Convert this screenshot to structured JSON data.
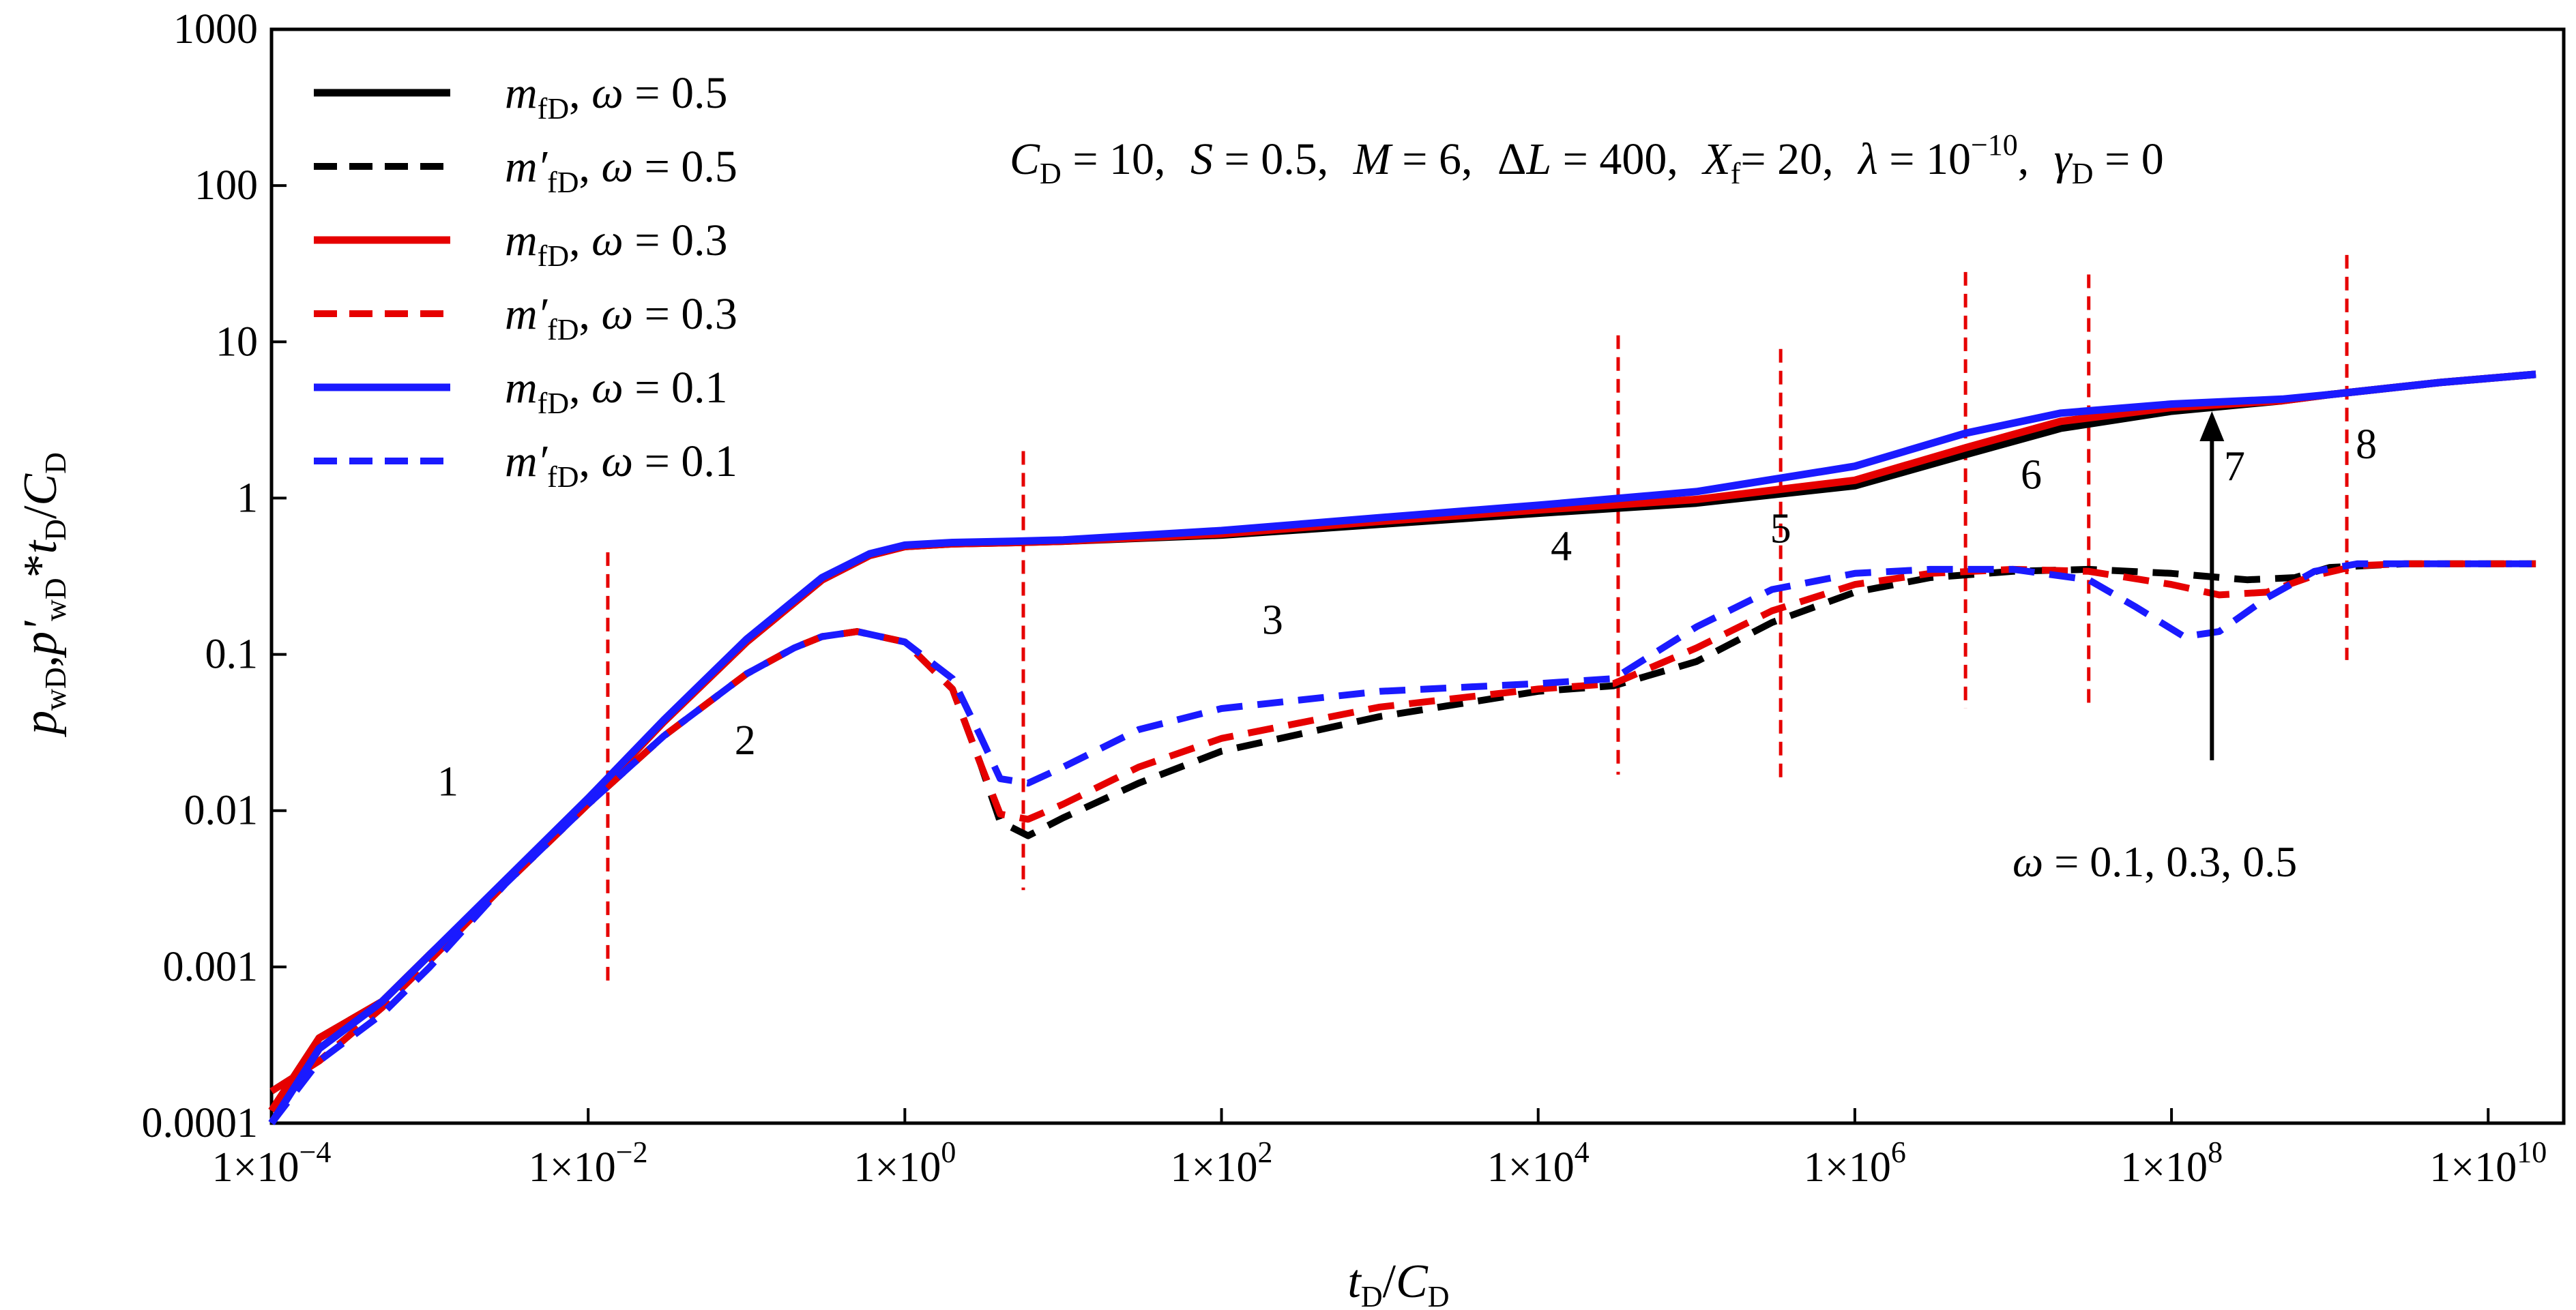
{
  "chart_data": {
    "type": "line",
    "title": "",
    "x_scale": "log",
    "y_scale": "log",
    "xlim": [
      0.0001,
      30000000000
    ],
    "ylim": [
      0.0001,
      1000
    ],
    "x_ticks": [
      {
        "value": 0.0001,
        "mant": "1×10",
        "exp": "−4"
      },
      {
        "value": 0.01,
        "mant": "1×10",
        "exp": "−2"
      },
      {
        "value": 1,
        "mant": "1×10",
        "exp": "0"
      },
      {
        "value": 100,
        "mant": "1×10",
        "exp": "2"
      },
      {
        "value": 10000,
        "mant": "1×10",
        "exp": "4"
      },
      {
        "value": 1000000,
        "mant": "1×10",
        "exp": "6"
      },
      {
        "value": 100000000,
        "mant": "1×10",
        "exp": "8"
      },
      {
        "value": 10000000000,
        "mant": "1×10",
        "exp": "10"
      }
    ],
    "y_ticks": [
      {
        "value": 0.0001,
        "label": "0.0001"
      },
      {
        "value": 0.001,
        "label": "0.001"
      },
      {
        "value": 0.01,
        "label": "0.01"
      },
      {
        "value": 0.1,
        "label": "0.1"
      },
      {
        "value": 1,
        "label": "1"
      },
      {
        "value": 10,
        "label": "10"
      },
      {
        "value": 100,
        "label": "100"
      },
      {
        "value": 1000,
        "label": "1000"
      }
    ],
    "xlabel": {
      "t": "t",
      "sub1": "D",
      "slash": "/",
      "c": "C",
      "sub2": "D"
    },
    "ylabel": {
      "p1": "p",
      "sub1": "wD",
      "comma": ",",
      "p2": "p'",
      "sub2": "wD",
      "star": "*",
      "t": "t",
      "sub3": "D",
      "slash": "/",
      "c": "C",
      "sub4": "D"
    },
    "params_text": {
      "cd": "C",
      "cd_sub": "D",
      "cd_val": " = 10,",
      "s": "S",
      "s_val": " = 0.5,",
      "m": "M",
      "m_val": " = 6,",
      "dl_pre": "Δ",
      "dl": "L",
      "dl_val": " = 400,",
      "xf": "X",
      "xf_sub": "f",
      "xf_val": "= 20,",
      "lam": "λ",
      "lam_val": " = 10",
      "lam_exp": "−10",
      "lam_comma": ",",
      "gam": "γ",
      "gam_sub": "D",
      "gam_val": " = 0"
    },
    "annotation": {
      "omega": "ω",
      "text": " = 0.1,  0.3,  0.5"
    },
    "region_labels": [
      {
        "label": "1",
        "x": 0.0013,
        "y": 0.0125
      },
      {
        "label": "2",
        "x": 0.098,
        "y": 0.023
      },
      {
        "label": "3",
        "x": 210,
        "y": 0.135
      },
      {
        "label": "4",
        "x": 14000,
        "y": 0.4
      },
      {
        "label": "5",
        "x": 340000,
        "y": 0.52
      },
      {
        "label": "6",
        "x": 13000000,
        "y": 1.15
      },
      {
        "label": "7",
        "x": 250000000,
        "y": 1.3
      },
      {
        "label": "8",
        "x": 1700000000,
        "y": 1.8
      }
    ],
    "region_boundaries": [
      {
        "x": 0.0133,
        "y_top": 0.45,
        "y_bottom": 0.00075
      },
      {
        "x": 5.6,
        "y_top": 2.0,
        "y_bottom": 0.0031
      },
      {
        "x": 32000,
        "y_top": 11.0,
        "y_bottom": 0.017
      },
      {
        "x": 340000,
        "y_top": 9.0,
        "y_bottom": 0.0145
      },
      {
        "x": 5000000,
        "y_top": 28.0,
        "y_bottom": 0.045
      },
      {
        "x": 30000000,
        "y_top": 27.0,
        "y_bottom": 0.045
      },
      {
        "x": 1280000000,
        "y_top": 36.0,
        "y_bottom": 0.092
      }
    ],
    "arrow": {
      "x": 180000000,
      "y_from": 0.021,
      "y_to": 3.6
    },
    "series": [
      {
        "name": "m_fD, ω = 0.5",
        "legend_m": "m",
        "legend_sub": "fD",
        "legend_omega": "ω",
        "legend_val": " = 0.5",
        "color": "#000000",
        "dash": false,
        "x": [
          0.0001,
          0.0002,
          0.0005,
          0.001,
          0.003,
          0.01,
          0.03,
          0.1,
          0.3,
          0.6,
          1,
          2,
          5,
          10,
          100,
          1000,
          10000,
          100000,
          1000000,
          5000000,
          20000000,
          100000000,
          500000000,
          1000000000,
          5000000000,
          20000000000
        ],
        "y": [
          0.00012,
          0.00035,
          0.0006,
          0.0012,
          0.0035,
          0.0115,
          0.037,
          0.12,
          0.3,
          0.43,
          0.49,
          0.51,
          0.52,
          0.53,
          0.58,
          0.68,
          0.8,
          0.93,
          1.2,
          1.9,
          2.8,
          3.6,
          4.2,
          4.6,
          5.5,
          6.2
        ]
      },
      {
        "name": "m'_fD, ω = 0.5",
        "legend_m": "m′",
        "legend_sub": "fD",
        "legend_omega": "ω",
        "legend_val": " = 0.5",
        "color": "#000000",
        "dash": true,
        "x": [
          0.0001,
          0.0002,
          0.0005,
          0.001,
          0.003,
          0.01,
          0.03,
          0.1,
          0.2,
          0.3,
          0.5,
          1,
          2,
          3,
          4,
          6,
          10,
          30,
          100,
          1000,
          10000,
          30000,
          100000,
          300000,
          1000000,
          3000000,
          10000000,
          30000000,
          100000000,
          300000000,
          600000000,
          1000000000,
          3000000000,
          20000000000
        ],
        "y": [
          0.00016,
          0.00025,
          0.00055,
          0.0011,
          0.0034,
          0.011,
          0.03,
          0.075,
          0.11,
          0.13,
          0.14,
          0.12,
          0.06,
          0.02,
          0.0085,
          0.0069,
          0.009,
          0.015,
          0.024,
          0.04,
          0.058,
          0.063,
          0.09,
          0.16,
          0.25,
          0.31,
          0.34,
          0.35,
          0.33,
          0.3,
          0.31,
          0.36,
          0.38,
          0.38
        ]
      },
      {
        "name": "m_fD, ω = 0.3",
        "legend_m": "m",
        "legend_sub": "fD",
        "legend_omega": "ω",
        "legend_val": " = 0.3",
        "color": "#e60000",
        "dash": false,
        "x": [
          0.0001,
          0.0002,
          0.0005,
          0.001,
          0.003,
          0.01,
          0.03,
          0.1,
          0.3,
          0.6,
          1,
          2,
          5,
          10,
          100,
          1000,
          10000,
          100000,
          1000000,
          5000000,
          20000000,
          100000000,
          500000000,
          1000000000,
          5000000000,
          20000000000
        ],
        "y": [
          0.00012,
          0.00035,
          0.0006,
          0.0012,
          0.0035,
          0.0115,
          0.037,
          0.12,
          0.3,
          0.43,
          0.49,
          0.51,
          0.52,
          0.53,
          0.59,
          0.71,
          0.84,
          0.98,
          1.3,
          2.1,
          3.1,
          3.8,
          4.2,
          4.6,
          5.5,
          6.2
        ]
      },
      {
        "name": "m'_fD, ω = 0.3",
        "legend_m": "m′",
        "legend_sub": "fD",
        "legend_omega": "ω",
        "legend_val": " = 0.3",
        "color": "#e60000",
        "dash": true,
        "x": [
          0.0001,
          0.0002,
          0.0005,
          0.001,
          0.003,
          0.01,
          0.03,
          0.1,
          0.2,
          0.3,
          0.5,
          1,
          2,
          3,
          4,
          6,
          10,
          30,
          100,
          1000,
          10000,
          30000,
          100000,
          300000,
          1000000,
          3000000,
          10000000,
          30000000,
          100000000,
          200000000,
          400000000,
          800000000,
          1500000000,
          3000000000,
          20000000000
        ],
        "y": [
          0.00016,
          0.00025,
          0.00055,
          0.0011,
          0.0034,
          0.011,
          0.03,
          0.075,
          0.11,
          0.13,
          0.14,
          0.12,
          0.06,
          0.02,
          0.0095,
          0.0088,
          0.011,
          0.019,
          0.029,
          0.046,
          0.06,
          0.065,
          0.11,
          0.19,
          0.28,
          0.33,
          0.35,
          0.34,
          0.28,
          0.24,
          0.25,
          0.32,
          0.37,
          0.38,
          0.38
        ]
      },
      {
        "name": "m_fD, ω = 0.1",
        "legend_m": "m",
        "legend_sub": "fD",
        "legend_omega": "ω",
        "legend_val": " = 0.1",
        "color": "#1a1aff",
        "dash": false,
        "x": [
          0.0001,
          0.0002,
          0.0005,
          0.001,
          0.003,
          0.01,
          0.03,
          0.1,
          0.3,
          0.6,
          1,
          2,
          5,
          10,
          100,
          1000,
          10000,
          100000,
          1000000,
          5000000,
          20000000,
          100000000,
          500000000,
          1000000000,
          5000000000,
          20000000000
        ],
        "y": [
          0.0001,
          0.0003,
          0.0006,
          0.0012,
          0.0036,
          0.012,
          0.038,
          0.125,
          0.31,
          0.44,
          0.5,
          0.52,
          0.53,
          0.54,
          0.62,
          0.75,
          0.9,
          1.1,
          1.6,
          2.6,
          3.5,
          4.0,
          4.3,
          4.6,
          5.5,
          6.2
        ]
      },
      {
        "name": "m'_fD, ω = 0.1",
        "legend_m": "m′",
        "legend_sub": "fD",
        "legend_omega": "ω",
        "legend_val": " = 0.1",
        "color": "#1a1aff",
        "dash": true,
        "x": [
          0.0001,
          0.0002,
          0.0005,
          0.001,
          0.003,
          0.01,
          0.03,
          0.1,
          0.2,
          0.3,
          0.5,
          1,
          2,
          3,
          4,
          6,
          10,
          30,
          100,
          1000,
          10000,
          30000,
          100000,
          300000,
          1000000,
          3000000,
          10000000,
          30000000,
          60000000,
          120000000,
          200000000,
          400000000,
          800000000,
          1500000000,
          3000000000,
          20000000000
        ],
        "y": [
          0.0001,
          0.00025,
          0.0005,
          0.001,
          0.0034,
          0.011,
          0.03,
          0.075,
          0.11,
          0.13,
          0.14,
          0.12,
          0.07,
          0.03,
          0.016,
          0.015,
          0.019,
          0.033,
          0.045,
          0.058,
          0.065,
          0.07,
          0.15,
          0.26,
          0.33,
          0.35,
          0.35,
          0.3,
          0.2,
          0.13,
          0.14,
          0.23,
          0.34,
          0.38,
          0.38,
          0.38
        ]
      }
    ]
  }
}
